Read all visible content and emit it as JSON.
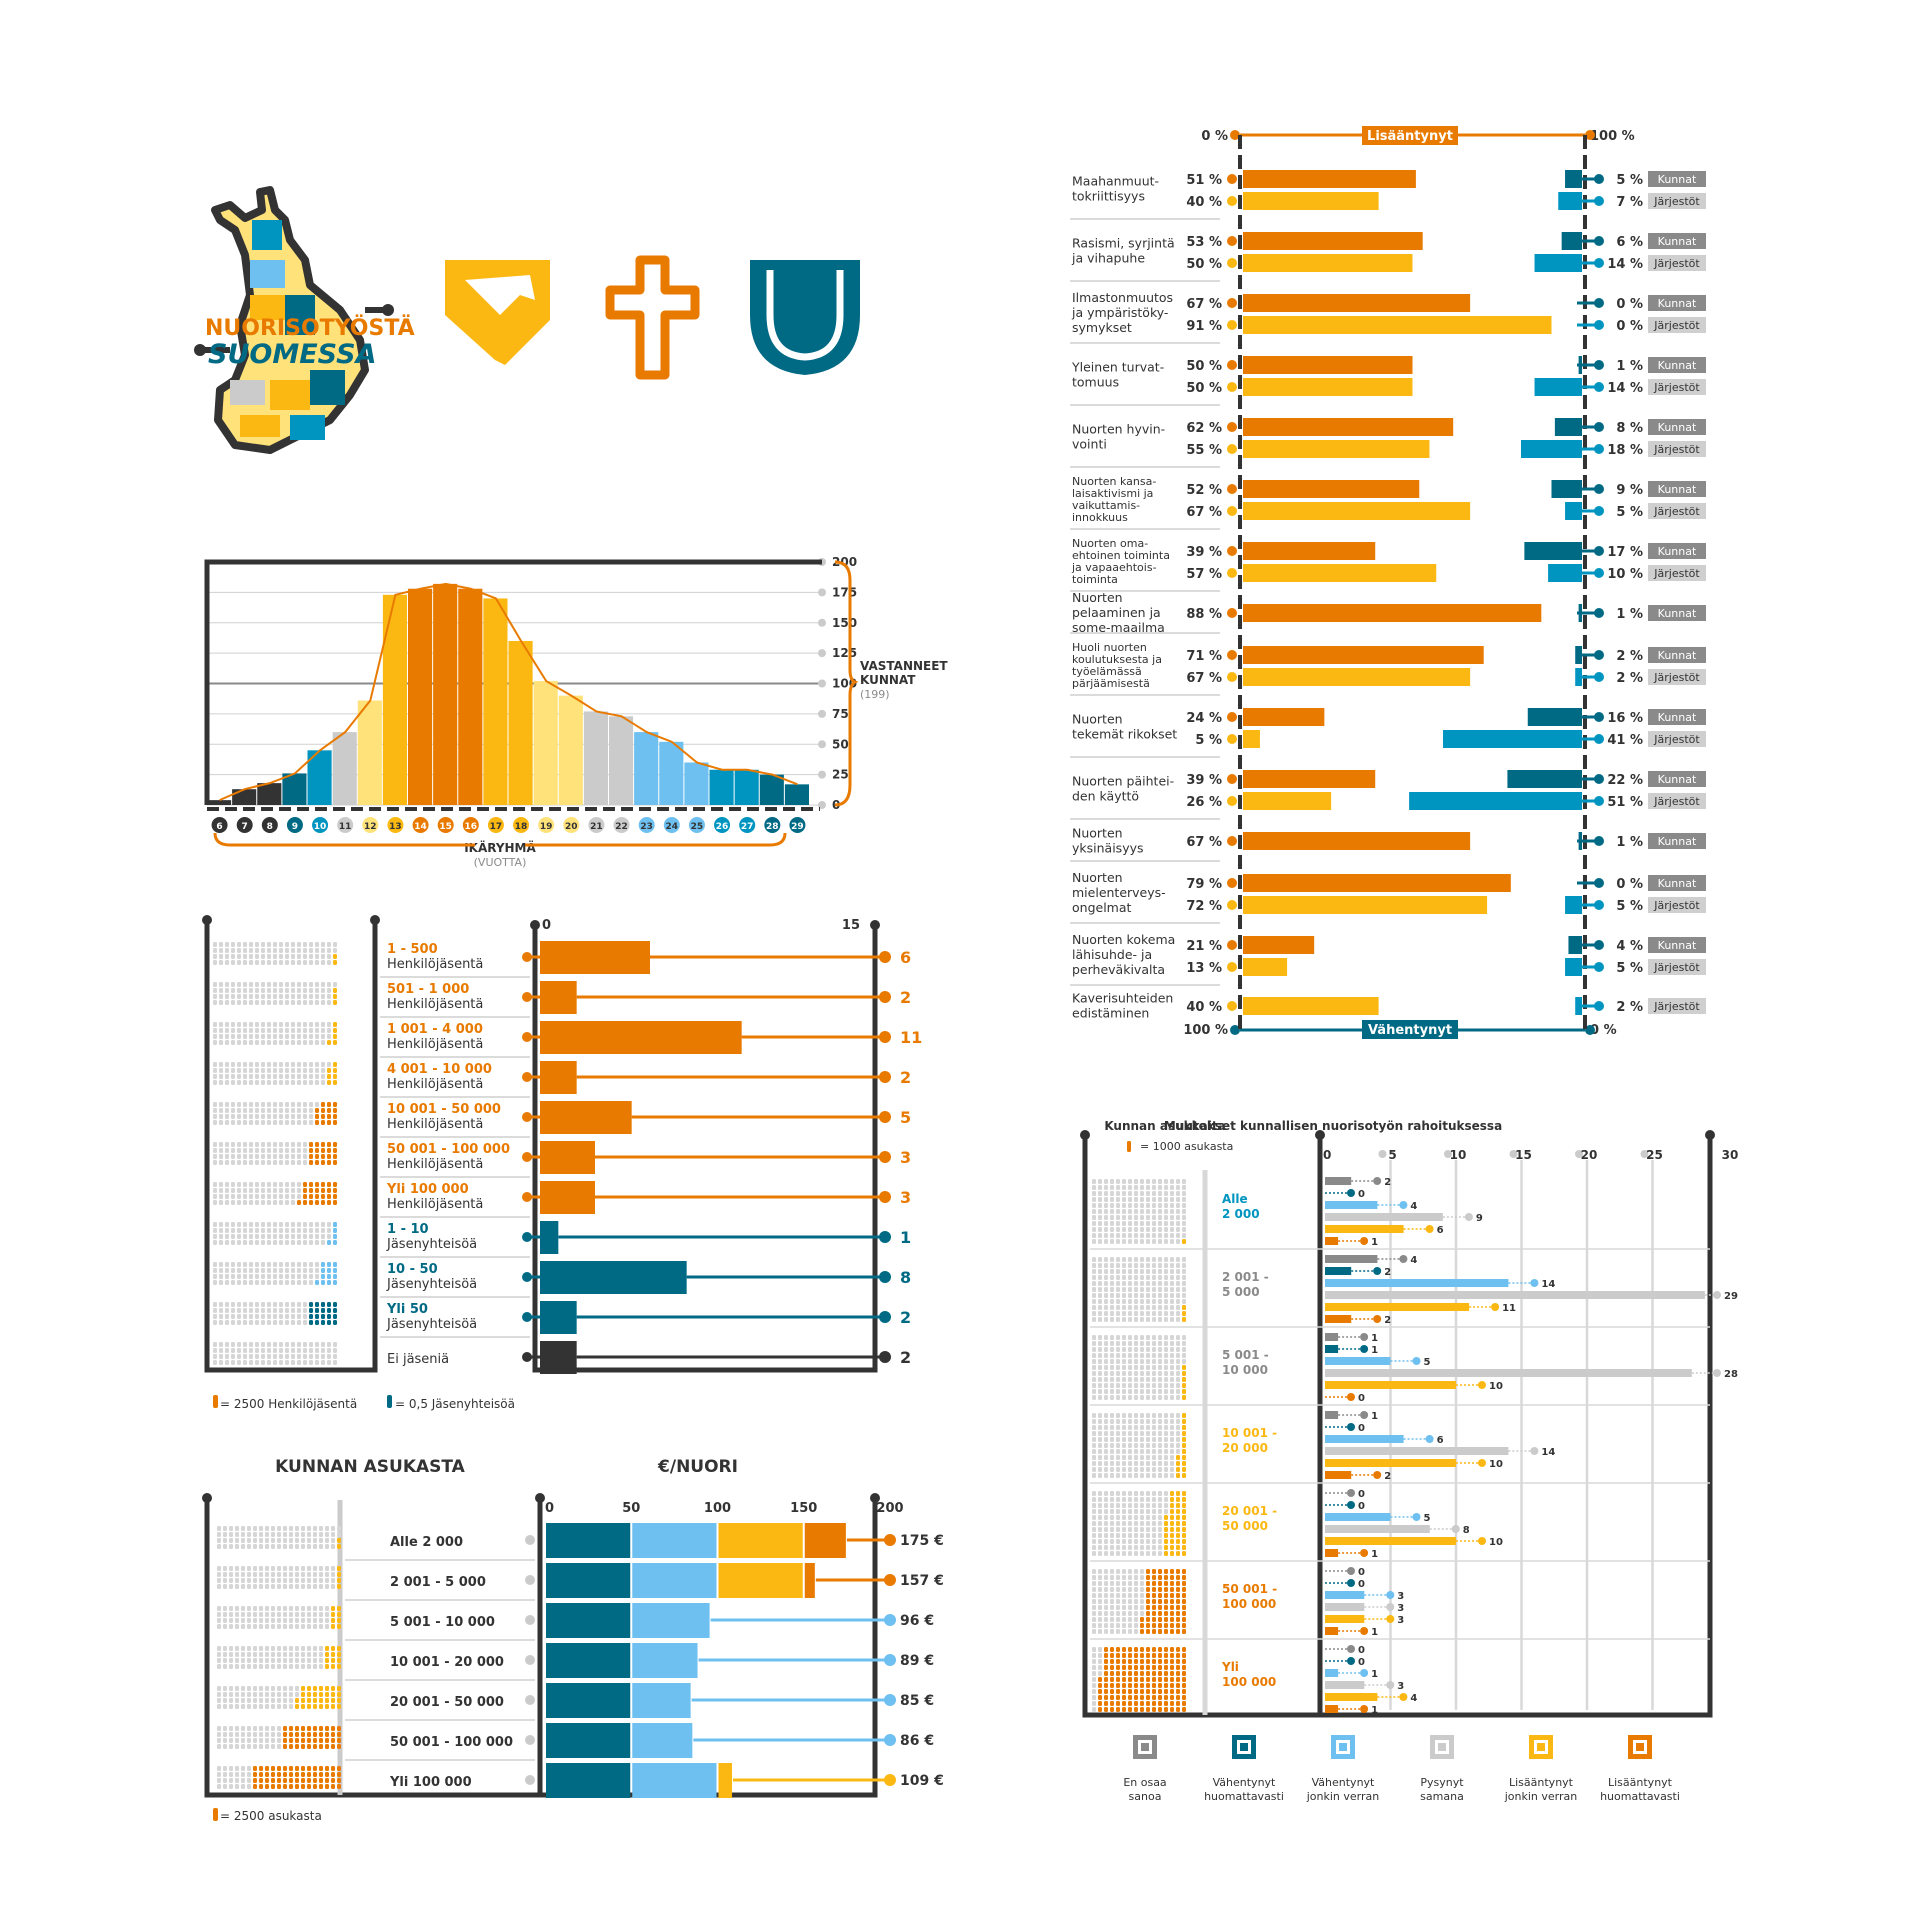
{
  "colors": {
    "dark": "#333333",
    "grey": "#cbcbcb",
    "midgrey": "#8a8a8a",
    "orange": "#e97a00",
    "yellow": "#fbb813",
    "lightyellow": "#ffe27a",
    "teal": "#006a85",
    "blue": "#0095c0",
    "lightblue": "#6ec0f0"
  },
  "logo": {
    "line1": "NUORISOTYÖSTÄ",
    "line2": "SUOMESSA",
    "icons": [
      "handshake-icon",
      "cross-icon",
      "shield-icon"
    ]
  },
  "age_chart": {
    "type": "area",
    "x": [
      6,
      7,
      8,
      9,
      10,
      11,
      12,
      13,
      14,
      15,
      16,
      17,
      18,
      19,
      20,
      21,
      22,
      23,
      24,
      25,
      26,
      27,
      28,
      29
    ],
    "values": [
      4,
      13,
      18,
      26,
      45,
      60,
      86,
      173,
      178,
      182,
      178,
      170,
      135,
      102,
      90,
      77,
      73,
      60,
      52,
      35,
      29,
      29,
      25,
      17
    ],
    "ylim": [
      0,
      200
    ],
    "yticks": [
      0,
      25,
      50,
      75,
      100,
      125,
      150,
      175,
      200
    ],
    "ylabel": "VASTANNEET\nKUNNAT",
    "ylabel_note": "(199)",
    "xlabel": "IKÄRYHMÄ",
    "xlabel_note": "(VUOTTA)",
    "bar_colors": [
      "#333333",
      "#333333",
      "#333333",
      "#006a85",
      "#0095c0",
      "#cbcbcb",
      "#ffe27a",
      "#fbb813",
      "#e97a00",
      "#e97a00",
      "#e97a00",
      "#fbb813",
      "#fbb813",
      "#ffe27a",
      "#ffe27a",
      "#cbcbcb",
      "#cbcbcb",
      "#6ec0f0",
      "#6ec0f0",
      "#6ec0f0",
      "#0095c0",
      "#0095c0",
      "#006a85",
      "#006a85"
    ]
  },
  "membership_chart": {
    "type": "bar",
    "xlim": [
      0,
      15
    ],
    "rows": [
      {
        "range": "1 - 500",
        "unit": "Henkilöjäsentä",
        "value": 6,
        "color": "#e97a00",
        "range_color": "#e97a00"
      },
      {
        "range": "501 - 1 000",
        "unit": "Henkilöjäsentä",
        "value": 2,
        "color": "#e97a00",
        "range_color": "#e97a00"
      },
      {
        "range": "1 001 - 4 000",
        "unit": "Henkilöjäsentä",
        "value": 11,
        "color": "#e97a00",
        "range_color": "#e97a00"
      },
      {
        "range": "4 001 - 10 000",
        "unit": "Henkilöjäsentä",
        "value": 2,
        "color": "#e97a00",
        "range_color": "#e97a00"
      },
      {
        "range": "10 001 - 50 000",
        "unit": "Henkilöjäsentä",
        "value": 5,
        "color": "#e97a00",
        "range_color": "#e97a00"
      },
      {
        "range": "50 001 - 100 000",
        "unit": "Henkilöjäsentä",
        "value": 3,
        "color": "#e97a00",
        "range_color": "#e97a00"
      },
      {
        "range": "Yli 100 000",
        "unit": "Henkilöjäsentä",
        "value": 3,
        "color": "#e97a00",
        "range_color": "#e97a00"
      },
      {
        "range": "1 - 10",
        "unit": "Jäsenyhteisöä",
        "value": 1,
        "color": "#006a85",
        "range_color": "#006a85"
      },
      {
        "range": "10 - 50",
        "unit": "Jäsenyhteisöä",
        "value": 8,
        "color": "#006a85",
        "range_color": "#006a85"
      },
      {
        "range": "Yli 50",
        "unit": "Jäsenyhteisöä",
        "value": 2,
        "color": "#006a85",
        "range_color": "#006a85"
      },
      {
        "range": "",
        "unit": "Ei jäseniä",
        "value": 2,
        "color": "#333333",
        "range_color": "#333333"
      }
    ],
    "legend_person": "= 2500 Henkilöjäsentä",
    "legend_org": "= 0,5 Jäsenyhteisöä"
  },
  "euro_chart": {
    "type": "bar",
    "title_left": "KUNNAN ASUKASTA",
    "title_right": "€/NUORI",
    "xticks": [
      0,
      50,
      100,
      150,
      200
    ],
    "xlim": [
      0,
      200
    ],
    "rows": [
      {
        "label": "Alle 2 000",
        "value": 175,
        "display": "175 €",
        "line_color": "#e97a00"
      },
      {
        "label": "2 001 - 5 000",
        "value": 157,
        "display": "157 €",
        "line_color": "#e97a00"
      },
      {
        "label": "5 001 - 10 000",
        "value": 96,
        "display": "96 €",
        "line_color": "#6ec0f0"
      },
      {
        "label": "10 001 - 20 000",
        "value": 89,
        "display": "89 €",
        "line_color": "#6ec0f0"
      },
      {
        "label": "20 001 - 50 000",
        "value": 85,
        "display": "85 €",
        "line_color": "#6ec0f0"
      },
      {
        "label": "50 001 - 100 000",
        "value": 86,
        "display": "86 €",
        "line_color": "#6ec0f0"
      },
      {
        "label": "Yli 100 000",
        "value": 109,
        "display": "109 €",
        "line_color": "#fbb813"
      }
    ],
    "legend": "= 2500 asukasta"
  },
  "concern_chart": {
    "type": "bar",
    "top_left": "0 %",
    "top_label": "Lisääntynyt",
    "top_right": "100 %",
    "bottom_left": "100 %",
    "bottom_label": "Vähentynyt",
    "bottom_right": "0 %",
    "tag_kunnat": "Kunnat",
    "tag_jarjestot": "Järjestöt",
    "items": [
      {
        "label": "Maahanmuut-\ntokriittisyys",
        "rows": [
          {
            "group": "Kunnat",
            "inc": 51,
            "dec": 5
          },
          {
            "group": "Järjestöt",
            "inc": 40,
            "dec": 7
          }
        ]
      },
      {
        "label": "Rasismi, syrjintä\nja vihapuhe",
        "rows": [
          {
            "group": "Kunnat",
            "inc": 53,
            "dec": 6
          },
          {
            "group": "Järjestöt",
            "inc": 50,
            "dec": 14
          }
        ]
      },
      {
        "label": "Ilmastonmuutos\nja ympäristöky-\nsymykset",
        "rows": [
          {
            "group": "Kunnat",
            "inc": 67,
            "dec": 0
          },
          {
            "group": "Järjestöt",
            "inc": 91,
            "dec": 0
          }
        ]
      },
      {
        "label": "Yleinen turvat-\ntomuus",
        "rows": [
          {
            "group": "Kunnat",
            "inc": 50,
            "dec": 1
          },
          {
            "group": "Järjestöt",
            "inc": 50,
            "dec": 14
          }
        ]
      },
      {
        "label": "Nuorten hyvin-\nvointi",
        "rows": [
          {
            "group": "Kunnat",
            "inc": 62,
            "dec": 8
          },
          {
            "group": "Järjestöt",
            "inc": 55,
            "dec": 18
          }
        ]
      },
      {
        "label": "Nuorten kansa-\nlaisaktivismi ja\nvaikuttamis-\ninnokkuus",
        "rows": [
          {
            "group": "Kunnat",
            "inc": 52,
            "dec": 9
          },
          {
            "group": "Järjestöt",
            "inc": 67,
            "dec": 5
          }
        ]
      },
      {
        "label": "Nuorten oma-\nehtoinen toiminta\nja vapaaehtois-\ntoiminta",
        "rows": [
          {
            "group": "Kunnat",
            "inc": 39,
            "dec": 17
          },
          {
            "group": "Järjestöt",
            "inc": 57,
            "dec": 10
          }
        ]
      },
      {
        "label": "Nuorten\npelaaminen ja\nsome-maailma",
        "rows": [
          {
            "group": "Kunnat",
            "inc": 88,
            "dec": 1
          }
        ]
      },
      {
        "label": "Huoli nuorten\nkoulutuksesta ja\ntyöelämässä\npärjäämisestä",
        "rows": [
          {
            "group": "Kunnat",
            "inc": 71,
            "dec": 2
          },
          {
            "group": "Järjestöt",
            "inc": 67,
            "dec": 2
          }
        ]
      },
      {
        "label": "Nuorten\ntekemät rikokset",
        "rows": [
          {
            "group": "Kunnat",
            "inc": 24,
            "dec": 16
          },
          {
            "group": "Järjestöt",
            "inc": 5,
            "dec": 41
          }
        ]
      },
      {
        "label": "Nuorten päihtei-\nden käyttö",
        "rows": [
          {
            "group": "Kunnat",
            "inc": 39,
            "dec": 22
          },
          {
            "group": "Järjestöt",
            "inc": 26,
            "dec": 51
          }
        ]
      },
      {
        "label": "Nuorten\nyksinäisyys",
        "rows": [
          {
            "group": "Kunnat",
            "inc": 67,
            "dec": 1
          }
        ]
      },
      {
        "label": "Nuorten\nmielenterveys-\nongelmat",
        "rows": [
          {
            "group": "Kunnat",
            "inc": 79,
            "dec": 0
          },
          {
            "group": "Järjestöt",
            "inc": 72,
            "dec": 5
          }
        ]
      },
      {
        "label": "Nuorten kokema\nlähisuhde- ja\nperheväkivalta",
        "rows": [
          {
            "group": "Kunnat",
            "inc": 21,
            "dec": 4
          },
          {
            "group": "Järjestöt",
            "inc": 13,
            "dec": 5
          }
        ]
      },
      {
        "label": "Kaverisuhteiden\nedistäminen",
        "rows": [
          {
            "group": "Järjestöt",
            "inc": 40,
            "dec": 2
          }
        ]
      }
    ]
  },
  "funding_chart": {
    "type": "bar",
    "title_left": "Kunnan asukkaita",
    "legend_unit": "= 1000 asukasta",
    "title_right": "Muutokset kunnallisen nuorisotyön rahoituksessa",
    "xticks": [
      0,
      5,
      10,
      15,
      20,
      25,
      30
    ],
    "xlim": [
      0,
      30
    ],
    "series_colors": [
      "#8a8a8a",
      "#006a85",
      "#6ec0f0",
      "#cbcbcb",
      "#fbb813",
      "#e97a00"
    ],
    "groups": [
      {
        "label": "Alle\n2 000",
        "label_color": "#0095c0",
        "values": [
          2,
          0,
          4,
          9,
          6,
          1
        ]
      },
      {
        "label": "2 001 -\n5 000",
        "label_color": "#8a8a8a",
        "values": [
          4,
          2,
          14,
          29,
          11,
          2
        ]
      },
      {
        "label": "5 001 -\n10 000",
        "label_color": "#8a8a8a",
        "values": [
          1,
          1,
          5,
          28,
          10,
          0
        ]
      },
      {
        "label": "10 001 -\n20 000",
        "label_color": "#fbb813",
        "values": [
          1,
          0,
          6,
          14,
          10,
          2
        ]
      },
      {
        "label": "20 001 -\n50 000",
        "label_color": "#fbb813",
        "values": [
          0,
          0,
          5,
          8,
          10,
          1
        ]
      },
      {
        "label": "50 001 -\n100 000",
        "label_color": "#e97a00",
        "values": [
          0,
          0,
          3,
          3,
          3,
          1
        ]
      },
      {
        "label": "Yli\n100 000",
        "label_color": "#e97a00",
        "values": [
          0,
          0,
          1,
          3,
          4,
          1
        ]
      }
    ],
    "legend": [
      {
        "label": "En osaa\nsanoa",
        "color": "#8a8a8a"
      },
      {
        "label": "Vähentynyt\nhuomattavasti",
        "color": "#006a85"
      },
      {
        "label": "Vähentynyt\njonkin verran",
        "color": "#6ec0f0"
      },
      {
        "label": "Pysynyt\nsamana",
        "color": "#cbcbcb"
      },
      {
        "label": "Lisääntynyt\njonkin verran",
        "color": "#fbb813"
      },
      {
        "label": "Lisääntynyt\nhuomattavasti",
        "color": "#e97a00"
      }
    ]
  }
}
